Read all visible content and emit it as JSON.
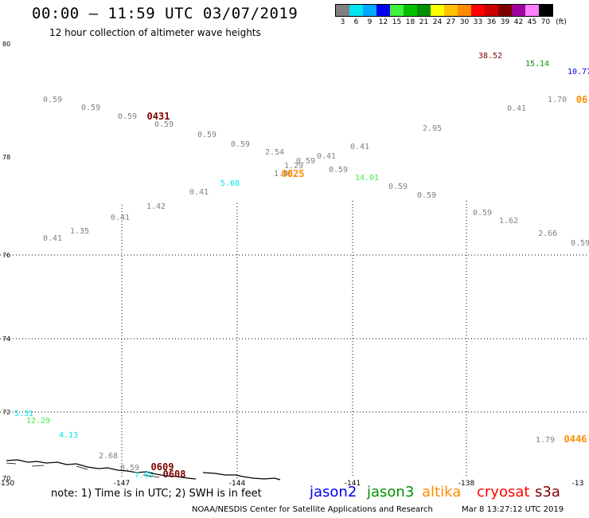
{
  "title": "00:00 – 11:59 UTC 03/07/2019",
  "subtitle": "12 hour collection of altimeter wave heights",
  "color_scale": {
    "unit": "(ft)",
    "labels": [
      "3",
      "6",
      "9",
      "12",
      "15",
      "18",
      "21",
      "24",
      "27",
      "30",
      "33",
      "36",
      "39",
      "42",
      "45",
      "70"
    ],
    "colors": [
      "#808080",
      "#00e5ee",
      "#00a8ff",
      "#0000ee",
      "#40f040",
      "#00c000",
      "#009000",
      "#ffff00",
      "#ffc000",
      "#ff8c00",
      "#ff0000",
      "#cc0000",
      "#800000",
      "#a000a0",
      "#ff80ff",
      "#000000"
    ]
  },
  "axes": {
    "lat_labels": [
      "80",
      "78",
      "76",
      "74",
      "72",
      "70"
    ],
    "lon_labels": [
      "-150",
      "-147",
      "-144",
      "-141",
      "-138",
      "-13"
    ]
  },
  "chart_data": {
    "type": "scatter",
    "points": [
      {
        "t": "0.59",
        "c": "#808080"
      },
      {
        "t": "0.59",
        "c": "#808080"
      },
      {
        "t": "0.59",
        "c": "#808080"
      },
      {
        "t": "0431",
        "c": "#800000"
      },
      {
        "t": "0.59",
        "c": "#808080"
      },
      {
        "t": "0.59",
        "c": "#808080"
      },
      {
        "t": "0.59",
        "c": "#808080"
      },
      {
        "t": "2.54",
        "c": "#808080"
      },
      {
        "t": "1.29",
        "c": "#808080"
      },
      {
        "t": "0.59",
        "c": "#808080"
      },
      {
        "t": "0.41",
        "c": "#808080"
      },
      {
        "t": "0.41",
        "c": "#808080"
      },
      {
        "t": "2.95",
        "c": "#808080"
      },
      {
        "t": "1.88",
        "c": "#808080"
      },
      {
        "t": "0625",
        "c": "#ff8c00"
      },
      {
        "t": "0.59",
        "c": "#808080"
      },
      {
        "t": "14.01",
        "c": "#40f040"
      },
      {
        "t": "5.68",
        "c": "#00e5ee"
      },
      {
        "t": "0.41",
        "c": "#808080"
      },
      {
        "t": "0.59",
        "c": "#808080"
      },
      {
        "t": "0.59",
        "c": "#808080"
      },
      {
        "t": "1.42",
        "c": "#808080"
      },
      {
        "t": "0.41",
        "c": "#808080"
      },
      {
        "t": "1.35",
        "c": "#808080"
      },
      {
        "t": "0.41",
        "c": "#808080"
      },
      {
        "t": "0.59",
        "c": "#808080"
      },
      {
        "t": "1.62",
        "c": "#808080"
      },
      {
        "t": "2.66",
        "c": "#808080"
      },
      {
        "t": "0.59",
        "c": "#808080"
      },
      {
        "t": "38.52",
        "c": "#800000"
      },
      {
        "t": "15.14",
        "c": "#009000"
      },
      {
        "t": "10.77",
        "c": "#0000ee"
      },
      {
        "t": "0.41",
        "c": "#808080"
      },
      {
        "t": "1.70",
        "c": "#808080"
      },
      {
        "t": "06",
        "c": "#ff8c00"
      },
      {
        "t": "5.31",
        "c": "#00e5ee"
      },
      {
        "t": "12.29",
        "c": "#40f040"
      },
      {
        "t": "4.13",
        "c": "#00e5ee"
      },
      {
        "t": "2.68",
        "c": "#808080"
      },
      {
        "t": "0.59",
        "c": "#808080"
      },
      {
        "t": "7.65",
        "c": "#00e5ee"
      },
      {
        "t": "0609",
        "c": "#800000"
      },
      {
        "t": "0608",
        "c": "#800000"
      },
      {
        "t": "1.79",
        "c": "#808080"
      },
      {
        "t": "0446",
        "c": "#ff8c00"
      }
    ]
  },
  "footer": {
    "note": "note:  1) Time is in UTC;  2) SWH is in feet",
    "satellites": [
      {
        "name": "jason2",
        "color": "#0000ee"
      },
      {
        "name": "jason3",
        "color": "#009000"
      },
      {
        "name": "altika",
        "color": "#ff8c00"
      },
      {
        "name": "cryosat",
        "color": "#ff0000"
      },
      {
        "name": "s3a",
        "color": "#800000"
      }
    ],
    "credit": "NOAA/NESDIS Center for Satellite Applications and Research",
    "timestamp": "Mar  8 13:27:12 UTC 2019"
  }
}
